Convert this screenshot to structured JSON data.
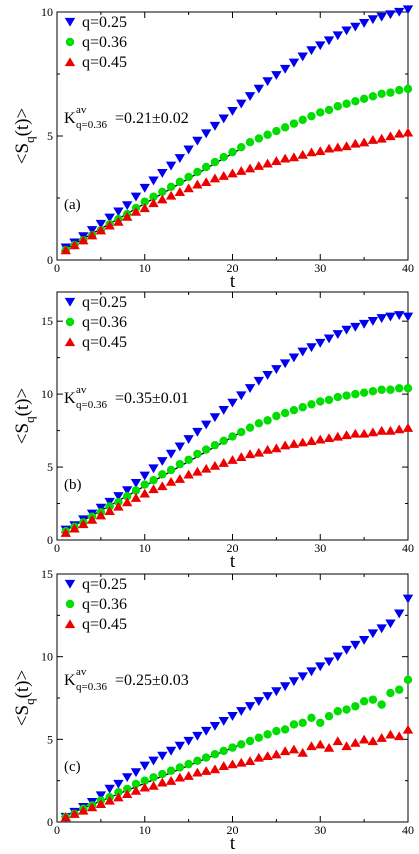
{
  "chart_data": [
    {
      "type": "scatter",
      "panel_label": "(a)",
      "xlabel": "t",
      "ylabel": "<S_q(t)>",
      "xlim": [
        0,
        40
      ],
      "ylim": [
        0,
        10
      ],
      "xticks": [
        0,
        10,
        20,
        30,
        40
      ],
      "yticks": [
        0,
        5,
        10
      ],
      "legend_placement": "top-left",
      "annotation": {
        "main": "K",
        "sup": "av",
        "sub": "q=0.36",
        "value": "=0.21±0.02"
      },
      "fit_line": {
        "x": [
          0.5,
          21
        ],
        "y": [
          0.35,
          4.5
        ]
      },
      "series": [
        {
          "name": "q=0.25",
          "marker": "triangle-down",
          "color": "#0000ee",
          "x": [
            1,
            2,
            3,
            4,
            5,
            6,
            7,
            8,
            9,
            10,
            11,
            12,
            13,
            14,
            15,
            16,
            17,
            18,
            19,
            20,
            21,
            22,
            23,
            24,
            25,
            26,
            27,
            28,
            29,
            30,
            31,
            32,
            33,
            34,
            35,
            36,
            37,
            38,
            39,
            40
          ],
          "y": [
            0.5,
            0.7,
            0.95,
            1.2,
            1.45,
            1.7,
            1.95,
            2.2,
            2.55,
            2.9,
            3.2,
            3.5,
            3.8,
            4.1,
            4.45,
            4.8,
            5.1,
            5.4,
            5.7,
            6.0,
            6.3,
            6.6,
            6.9,
            7.2,
            7.45,
            7.7,
            7.95,
            8.2,
            8.45,
            8.65,
            8.85,
            9.05,
            9.25,
            9.4,
            9.55,
            9.7,
            9.8,
            9.9,
            10.0,
            10.1
          ]
        },
        {
          "name": "q=0.36",
          "marker": "circle",
          "color": "#00dd00",
          "x": [
            1,
            2,
            3,
            4,
            5,
            6,
            7,
            8,
            9,
            10,
            11,
            12,
            13,
            14,
            15,
            16,
            17,
            18,
            19,
            20,
            21,
            22,
            23,
            24,
            25,
            26,
            27,
            28,
            29,
            30,
            31,
            32,
            33,
            34,
            35,
            36,
            37,
            38,
            39,
            40
          ],
          "y": [
            0.4,
            0.6,
            0.8,
            1.0,
            1.2,
            1.45,
            1.65,
            1.85,
            2.1,
            2.35,
            2.55,
            2.75,
            2.95,
            3.15,
            3.35,
            3.55,
            3.75,
            3.95,
            4.15,
            4.35,
            4.55,
            4.75,
            4.9,
            5.05,
            5.2,
            5.35,
            5.5,
            5.65,
            5.8,
            5.95,
            6.05,
            6.2,
            6.3,
            6.4,
            6.5,
            6.6,
            6.7,
            6.75,
            6.85,
            6.9
          ]
        },
        {
          "name": "q=0.45",
          "marker": "triangle-up",
          "color": "#ee0000",
          "x": [
            1,
            2,
            3,
            4,
            5,
            6,
            7,
            8,
            9,
            10,
            11,
            12,
            13,
            14,
            15,
            16,
            17,
            18,
            19,
            20,
            21,
            22,
            23,
            24,
            25,
            26,
            27,
            28,
            29,
            30,
            31,
            32,
            33,
            34,
            35,
            36,
            37,
            38,
            39,
            40
          ],
          "y": [
            0.4,
            0.6,
            0.8,
            1.0,
            1.2,
            1.4,
            1.55,
            1.75,
            1.95,
            2.1,
            2.3,
            2.45,
            2.6,
            2.75,
            2.9,
            3.05,
            3.15,
            3.3,
            3.4,
            3.5,
            3.6,
            3.7,
            3.8,
            3.9,
            4.0,
            4.1,
            4.15,
            4.25,
            4.35,
            4.4,
            4.5,
            4.55,
            4.6,
            4.7,
            4.75,
            4.85,
            4.9,
            5.0,
            5.1,
            5.15
          ]
        }
      ]
    },
    {
      "type": "scatter",
      "panel_label": "(b)",
      "xlabel": "t",
      "ylabel": "<S_q(t)>",
      "xlim": [
        0,
        40
      ],
      "ylim": [
        0,
        17
      ],
      "xticks": [
        0,
        10,
        20,
        30,
        40
      ],
      "yticks": [
        0,
        5,
        10,
        15
      ],
      "legend_placement": "top-left",
      "annotation": {
        "main": "K",
        "sup": "av",
        "sub": "q=0.36",
        "value": "=0.35±0.01"
      },
      "fit_line": {
        "x": [
          0.5,
          21
        ],
        "y": [
          0.5,
          7.4
        ]
      },
      "series": [
        {
          "name": "q=0.25",
          "marker": "triangle-down",
          "color": "#0000ee",
          "x": [
            1,
            2,
            3,
            4,
            5,
            6,
            7,
            8,
            9,
            10,
            11,
            12,
            13,
            14,
            15,
            16,
            17,
            18,
            19,
            20,
            21,
            22,
            23,
            24,
            25,
            26,
            27,
            28,
            29,
            30,
            31,
            32,
            33,
            34,
            35,
            36,
            37,
            38,
            39,
            40
          ],
          "y": [
            0.7,
            1.0,
            1.4,
            1.8,
            2.2,
            2.6,
            3.0,
            3.4,
            3.9,
            4.4,
            4.9,
            5.4,
            5.9,
            6.4,
            6.9,
            7.4,
            7.9,
            8.4,
            8.9,
            9.4,
            9.9,
            10.4,
            10.9,
            11.3,
            11.7,
            12.1,
            12.5,
            12.9,
            13.2,
            13.5,
            13.8,
            14.1,
            14.4,
            14.6,
            14.8,
            15.0,
            15.2,
            15.3,
            15.4,
            15.3
          ]
        },
        {
          "name": "q=0.36",
          "marker": "circle",
          "color": "#00dd00",
          "x": [
            1,
            2,
            3,
            4,
            5,
            6,
            7,
            8,
            9,
            10,
            11,
            12,
            13,
            14,
            15,
            16,
            17,
            18,
            19,
            20,
            21,
            22,
            23,
            24,
            25,
            26,
            27,
            28,
            29,
            30,
            31,
            32,
            33,
            34,
            35,
            36,
            37,
            38,
            39,
            40
          ],
          "y": [
            0.6,
            0.9,
            1.2,
            1.6,
            1.9,
            2.3,
            2.6,
            3.0,
            3.4,
            3.8,
            4.1,
            4.5,
            4.8,
            5.2,
            5.5,
            5.9,
            6.2,
            6.5,
            6.8,
            7.1,
            7.4,
            7.7,
            8.0,
            8.2,
            8.5,
            8.7,
            8.9,
            9.1,
            9.3,
            9.5,
            9.6,
            9.8,
            9.9,
            10.0,
            10.1,
            10.2,
            10.3,
            10.3,
            10.4,
            10.4
          ]
        },
        {
          "name": "q=0.45",
          "marker": "triangle-up",
          "color": "#ee0000",
          "x": [
            1,
            2,
            3,
            4,
            5,
            6,
            7,
            8,
            9,
            10,
            11,
            12,
            13,
            14,
            15,
            16,
            17,
            18,
            19,
            20,
            21,
            22,
            23,
            24,
            25,
            26,
            27,
            28,
            29,
            30,
            31,
            32,
            33,
            34,
            35,
            36,
            37,
            38,
            39,
            40
          ],
          "y": [
            0.5,
            0.8,
            1.1,
            1.4,
            1.7,
            2.0,
            2.3,
            2.6,
            2.9,
            3.2,
            3.5,
            3.7,
            4.0,
            4.2,
            4.5,
            4.7,
            4.9,
            5.1,
            5.3,
            5.5,
            5.7,
            5.9,
            6.0,
            6.2,
            6.3,
            6.5,
            6.6,
            6.7,
            6.8,
            6.9,
            7.0,
            7.1,
            7.2,
            7.3,
            7.3,
            7.4,
            7.5,
            7.5,
            7.6,
            7.7
          ]
        }
      ]
    },
    {
      "type": "scatter",
      "panel_label": "(c)",
      "xlabel": "t",
      "ylabel": "<S_q(t)>",
      "xlim": [
        0,
        40
      ],
      "ylim": [
        0,
        15
      ],
      "xticks": [
        0,
        10,
        20,
        30,
        40
      ],
      "yticks": [
        0,
        5,
        10,
        15
      ],
      "legend_placement": "top-left",
      "annotation": {
        "main": "K",
        "sup": "av",
        "sub": "q=0.36",
        "value": "=0.25±0.03"
      },
      "fit_line": {
        "x": [
          0.5,
          21
        ],
        "y": [
          0.3,
          4.7
        ]
      },
      "series": [
        {
          "name": "q=0.25",
          "marker": "triangle-down",
          "color": "#0000ee",
          "x": [
            1,
            2,
            3,
            4,
            5,
            6,
            7,
            8,
            9,
            10,
            11,
            12,
            13,
            14,
            15,
            16,
            17,
            18,
            19,
            20,
            21,
            22,
            23,
            24,
            25,
            26,
            27,
            28,
            29,
            30,
            31,
            32,
            33,
            34,
            35,
            36,
            37,
            38,
            39,
            40
          ],
          "y": [
            0.3,
            0.6,
            0.9,
            1.2,
            1.6,
            2.0,
            2.3,
            2.7,
            3.0,
            3.4,
            3.7,
            4.0,
            4.3,
            4.6,
            4.9,
            5.2,
            5.5,
            5.8,
            6.1,
            6.4,
            6.7,
            7.0,
            7.3,
            7.6,
            7.9,
            8.2,
            8.5,
            8.8,
            9.1,
            9.4,
            9.7,
            10.0,
            10.4,
            10.7,
            11.0,
            11.4,
            11.7,
            12.0,
            12.6,
            13.5
          ]
        },
        {
          "name": "q=0.36",
          "marker": "circle",
          "color": "#00dd00",
          "x": [
            1,
            2,
            3,
            4,
            5,
            6,
            7,
            8,
            9,
            10,
            11,
            12,
            13,
            14,
            15,
            16,
            17,
            18,
            19,
            20,
            21,
            22,
            23,
            24,
            25,
            26,
            27,
            28,
            29,
            30,
            31,
            32,
            33,
            34,
            35,
            36,
            37,
            38,
            39,
            40
          ],
          "y": [
            0.3,
            0.5,
            0.8,
            1.0,
            1.3,
            1.5,
            1.8,
            2.0,
            2.3,
            2.5,
            2.7,
            2.9,
            3.1,
            3.3,
            3.5,
            3.7,
            3.9,
            4.1,
            4.3,
            4.5,
            4.7,
            4.9,
            5.1,
            5.3,
            5.5,
            5.6,
            5.9,
            6.0,
            6.3,
            6.0,
            6.4,
            6.7,
            6.8,
            7.0,
            7.3,
            7.4,
            7.1,
            7.8,
            8.0,
            8.6
          ]
        },
        {
          "name": "q=0.45",
          "marker": "triangle-up",
          "color": "#ee0000",
          "x": [
            1,
            2,
            3,
            4,
            5,
            6,
            7,
            8,
            9,
            10,
            11,
            12,
            13,
            14,
            15,
            16,
            17,
            18,
            19,
            20,
            21,
            22,
            23,
            24,
            25,
            26,
            27,
            28,
            29,
            30,
            31,
            32,
            33,
            34,
            35,
            36,
            37,
            38,
            39,
            40
          ],
          "y": [
            0.3,
            0.5,
            0.7,
            0.9,
            1.1,
            1.3,
            1.5,
            1.7,
            1.9,
            2.1,
            2.2,
            2.4,
            2.5,
            2.7,
            2.8,
            3.0,
            3.1,
            3.2,
            3.4,
            3.5,
            3.6,
            3.7,
            3.9,
            4.0,
            4.1,
            4.3,
            4.4,
            4.2,
            4.6,
            4.7,
            4.5,
            4.9,
            4.6,
            4.8,
            5.0,
            4.9,
            5.1,
            5.3,
            5.2,
            5.6
          ]
        }
      ]
    }
  ]
}
